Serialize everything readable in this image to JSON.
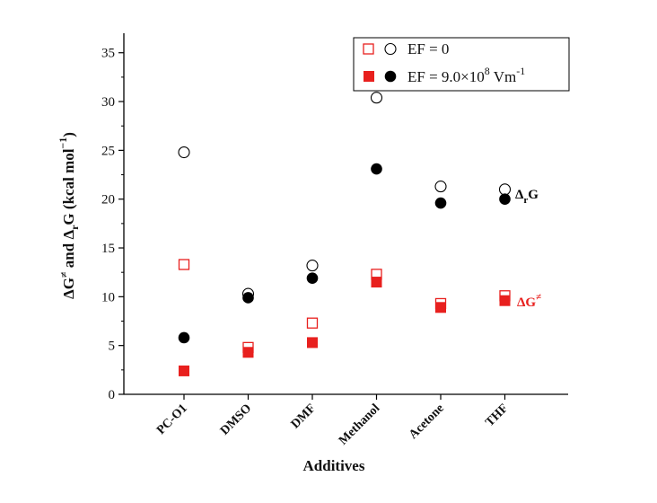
{
  "chart_data": {
    "type": "scatter",
    "xlabel": "Additives",
    "ylabel_parts": {
      "delta1": "ΔG",
      "sup1": "≠",
      "and": " and Δ",
      "sub_r": "r",
      "g": "G (kcal mol",
      "sup_m1": "−1",
      "close": ")"
    },
    "categories": [
      "PC-O1",
      "DMSO",
      "DMF",
      "Methanol",
      "Acetone",
      "THF"
    ],
    "ylim": [
      0,
      37
    ],
    "yticks": [
      "0",
      "5",
      "10",
      "15",
      "20",
      "25",
      "30",
      "35"
    ],
    "ytick_values": [
      0,
      5,
      10,
      15,
      20,
      25,
      30,
      35
    ],
    "series": [
      {
        "name": "ΔrG, EF = 0",
        "marker": "open-circle",
        "color": "#000000",
        "values": [
          24.8,
          10.3,
          13.2,
          30.4,
          21.3,
          21.0
        ]
      },
      {
        "name": "ΔrG, EF = 9.0×10^8 Vm^-1",
        "marker": "filled-circle",
        "color": "#000000",
        "values": [
          5.8,
          9.9,
          11.9,
          23.1,
          19.6,
          20.0
        ]
      },
      {
        "name": "ΔG≠, EF = 0",
        "marker": "open-square",
        "color": "#e8201e",
        "values": [
          13.3,
          4.8,
          7.3,
          12.3,
          9.3,
          10.1
        ]
      },
      {
        "name": "ΔG≠, EF = 9.0×10^8 Vm^-1",
        "marker": "filled-square",
        "color": "#e8201e",
        "values": [
          2.4,
          4.3,
          5.3,
          11.5,
          8.9,
          9.6
        ]
      }
    ],
    "legend": {
      "position": "top-right",
      "entry1": "EF = 0",
      "entry2_prefix": "EF = 9.0×10",
      "entry2_exp": "8",
      "entry2_unit": " Vm",
      "entry2_unit_exp": "-1"
    },
    "annotations": {
      "rG_prefix": "Δ",
      "rG_sub": "r",
      "rG_suffix": "G",
      "dG_text": "ΔG",
      "dG_sup": "≠"
    },
    "colors": {
      "red": "#e8201e",
      "black": "#000000"
    }
  }
}
